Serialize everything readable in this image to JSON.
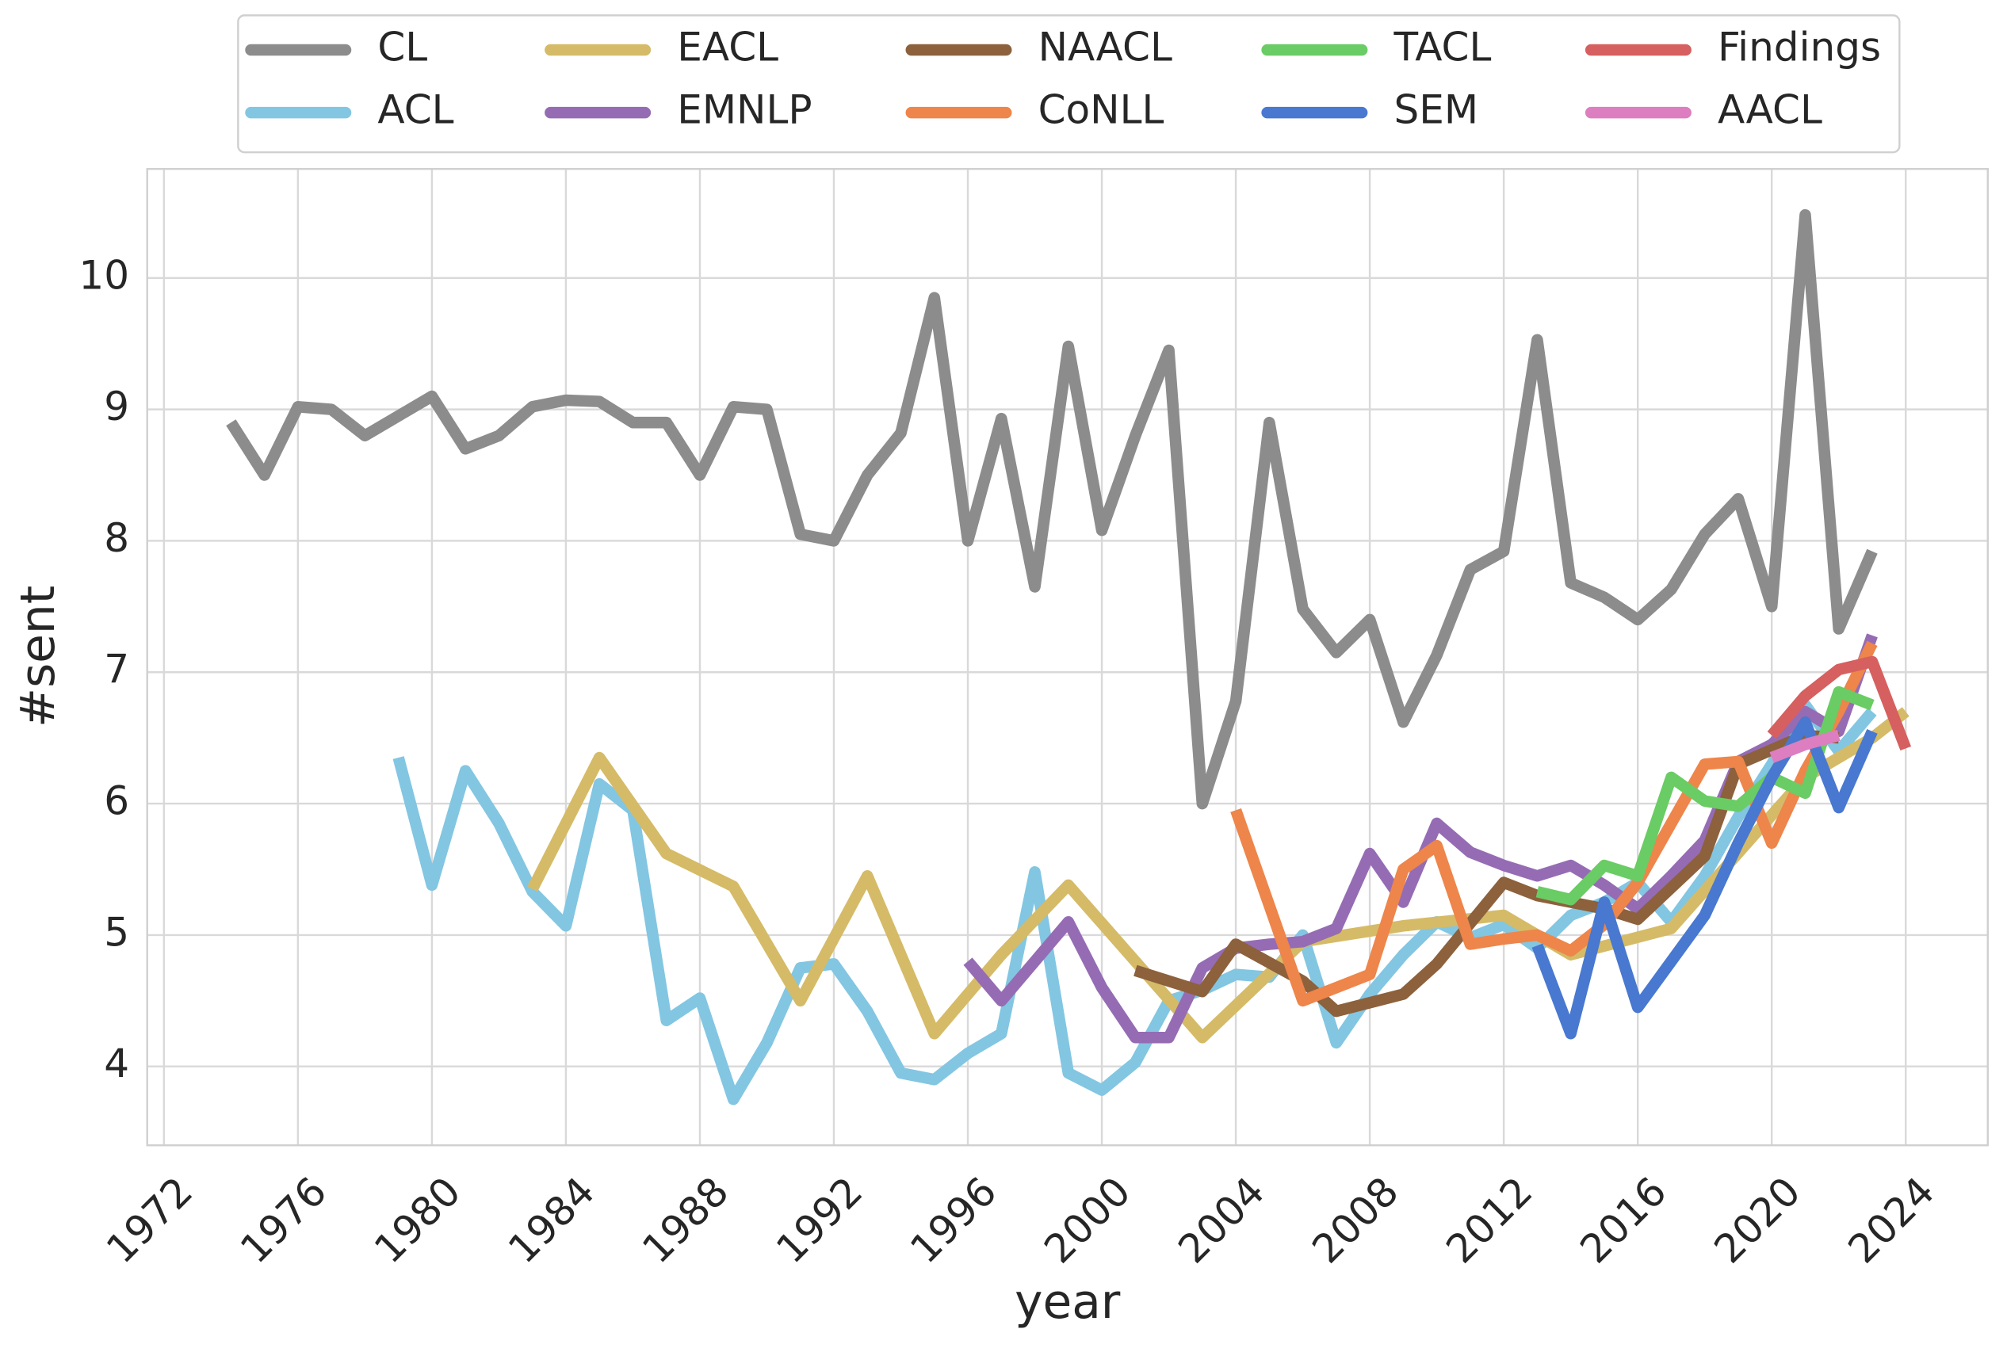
{
  "chart_data": {
    "type": "line",
    "xlabel": "year",
    "ylabel": "#sent",
    "xlim": [
      1971.5,
      2026.45
    ],
    "ylim": [
      3.4,
      10.83
    ],
    "xticks": [
      1972,
      1976,
      1980,
      1984,
      1988,
      1992,
      1996,
      2000,
      2004,
      2008,
      2012,
      2016,
      2020,
      2024
    ],
    "yticks": [
      4,
      5,
      6,
      7,
      8,
      9,
      10
    ],
    "grid": true,
    "legend": "upper center",
    "series": [
      {
        "name": "CL",
        "color": "#8c8c8c",
        "x": [
          1974,
          1975,
          1976,
          1977,
          1978,
          1979,
          1980,
          1981,
          1982,
          1983,
          1984,
          1985,
          1986,
          1987,
          1988,
          1989,
          1990,
          1991,
          1992,
          1993,
          1994,
          1995,
          1996,
          1997,
          1998,
          1999,
          2000,
          2001,
          2002,
          2003,
          2004,
          2005,
          2006,
          2007,
          2008,
          2009,
          2010,
          2011,
          2012,
          2013,
          2014,
          2015,
          2016,
          2017,
          2018,
          2019,
          2020,
          2021,
          2022,
          2023
        ],
        "values": [
          8.9,
          8.5,
          9.02,
          9.0,
          8.8,
          8.95,
          9.1,
          8.7,
          8.8,
          9.02,
          9.07,
          9.06,
          8.9,
          8.9,
          8.5,
          9.02,
          9.0,
          8.05,
          8.0,
          8.5,
          8.82,
          9.85,
          8.0,
          8.93,
          7.65,
          9.48,
          8.08,
          8.8,
          9.45,
          6.0,
          6.78,
          8.9,
          7.48,
          7.15,
          7.4,
          6.62,
          7.13,
          7.78,
          7.92,
          9.53,
          7.68,
          7.57,
          7.4,
          7.63,
          8.05,
          8.32,
          7.5,
          10.48,
          7.33,
          7.92
        ]
      },
      {
        "name": "ACL",
        "color": "#82c6e2",
        "x": [
          1979,
          1980,
          1981,
          1982,
          1983,
          1984,
          1985,
          1986,
          1987,
          1988,
          1989,
          1990,
          1991,
          1992,
          1993,
          1994,
          1995,
          1996,
          1997,
          1998,
          1999,
          2000,
          2001,
          2002,
          2003,
          2004,
          2005,
          2006,
          2007,
          2008,
          2009,
          2010,
          2011,
          2012,
          2013,
          2014,
          2015,
          2016,
          2017,
          2018,
          2019,
          2020,
          2021,
          2022,
          2023
        ],
        "values": [
          6.35,
          5.38,
          6.25,
          5.85,
          5.33,
          5.07,
          6.15,
          5.95,
          4.35,
          4.52,
          3.75,
          4.18,
          4.75,
          4.78,
          4.42,
          3.95,
          3.9,
          4.1,
          4.25,
          5.48,
          3.95,
          3.82,
          4.03,
          4.5,
          4.58,
          4.7,
          4.68,
          5.0,
          4.18,
          4.55,
          4.85,
          5.1,
          4.98,
          5.08,
          4.9,
          5.15,
          5.25,
          5.4,
          5.1,
          5.45,
          5.9,
          6.3,
          6.75,
          6.4,
          6.7
        ]
      },
      {
        "name": "EACL",
        "color": "#d5bb67",
        "x": [
          1983,
          1985,
          1987,
          1989,
          1991,
          1993,
          1995,
          1997,
          1999,
          2003,
          2006,
          2009,
          2012,
          2014,
          2017,
          2021,
          2023,
          2024
        ],
        "values": [
          5.35,
          6.35,
          5.62,
          5.37,
          4.5,
          5.45,
          4.25,
          4.85,
          5.38,
          4.22,
          4.95,
          5.07,
          5.15,
          4.85,
          5.05,
          6.2,
          6.5,
          6.7
        ]
      },
      {
        "name": "EMNLP",
        "color": "#956cb4",
        "x": [
          1996,
          1997,
          1998,
          1999,
          2000,
          2001,
          2002,
          2003,
          2004,
          2005,
          2006,
          2007,
          2008,
          2009,
          2010,
          2011,
          2012,
          2013,
          2014,
          2015,
          2016,
          2017,
          2018,
          2019,
          2020,
          2021,
          2022,
          2023
        ],
        "values": [
          4.8,
          4.5,
          4.8,
          5.1,
          4.6,
          4.22,
          4.22,
          4.75,
          4.9,
          4.93,
          4.95,
          5.05,
          5.62,
          5.25,
          5.85,
          5.63,
          5.53,
          5.45,
          5.53,
          5.38,
          5.2,
          5.45,
          5.72,
          6.32,
          6.45,
          6.7,
          6.55,
          7.28
        ]
      },
      {
        "name": "NAACL",
        "color": "#8c613c",
        "x": [
          2001,
          2003,
          2004,
          2006,
          2007,
          2009,
          2010,
          2012,
          2013,
          2015,
          2016,
          2018,
          2019,
          2021,
          2022
        ],
        "values": [
          4.73,
          4.57,
          4.93,
          4.65,
          4.42,
          4.55,
          4.78,
          5.4,
          5.3,
          5.2,
          5.12,
          5.6,
          6.3,
          6.52,
          6.5
        ]
      },
      {
        "name": "CoNLL",
        "color": "#ee854a",
        "x": [
          2004,
          2006,
          2007,
          2008,
          2009,
          2010,
          2011,
          2012,
          2013,
          2014,
          2015,
          2016,
          2017,
          2018,
          2019,
          2020,
          2021,
          2022,
          2023
        ],
        "values": [
          5.95,
          4.5,
          4.6,
          4.7,
          5.5,
          5.68,
          4.93,
          4.97,
          5.0,
          4.88,
          5.08,
          5.4,
          5.85,
          6.3,
          6.32,
          5.7,
          6.25,
          6.7,
          7.22
        ]
      },
      {
        "name": "TACL",
        "color": "#6acc64",
        "x": [
          2013,
          2014,
          2015,
          2016,
          2017,
          2018,
          2019,
          2020,
          2021,
          2022,
          2023
        ],
        "values": [
          5.33,
          5.27,
          5.53,
          5.45,
          6.2,
          6.02,
          5.98,
          6.2,
          6.08,
          6.85,
          6.75
        ]
      },
      {
        "name": "SEM",
        "color": "#4878d0",
        "x": [
          2013,
          2014,
          2015,
          2016,
          2017,
          2018,
          2019,
          2020,
          2021,
          2022,
          2023
        ],
        "values": [
          4.92,
          4.25,
          5.25,
          4.45,
          4.8,
          5.15,
          5.7,
          6.2,
          6.62,
          5.97,
          6.55
        ]
      },
      {
        "name": "Findings",
        "color": "#d65f5f",
        "x": [
          2020,
          2021,
          2022,
          2023,
          2024
        ],
        "values": [
          6.52,
          6.82,
          7.02,
          7.08,
          6.42
        ]
      },
      {
        "name": "AACL",
        "color": "#dc7ec0",
        "x": [
          2020,
          2021,
          2022
        ],
        "values": [
          6.35,
          6.45,
          6.52
        ]
      }
    ]
  }
}
